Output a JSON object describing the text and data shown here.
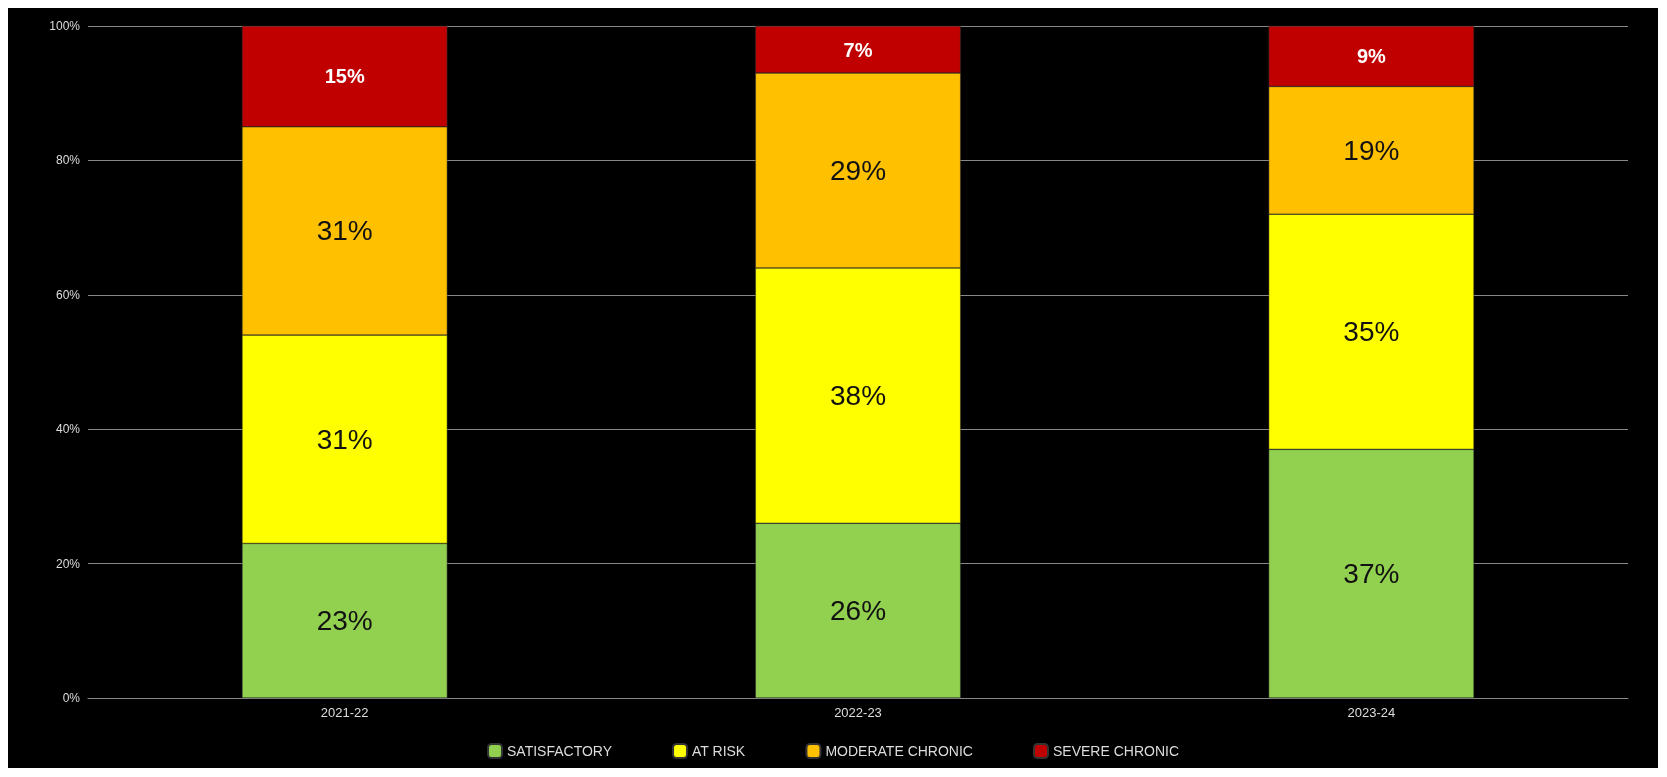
{
  "chart_data": {
    "type": "bar",
    "stacked": true,
    "categories": [
      "2021-22",
      "2022-23",
      "2023-24"
    ],
    "series": [
      {
        "name": "SATISFACTORY",
        "color": "#92d050",
        "values": [
          23,
          26,
          37
        ],
        "value_labels": [
          "23%",
          "26%",
          "37%"
        ]
      },
      {
        "name": "AT RISK",
        "color": "#ffff00",
        "values": [
          31,
          38,
          35
        ],
        "value_labels": [
          "31%",
          "38%",
          "35%"
        ]
      },
      {
        "name": "MODERATE CHRONIC",
        "color": "#ffc000",
        "values": [
          31,
          29,
          19
        ],
        "value_labels": [
          "31%",
          "29%",
          "19%"
        ]
      },
      {
        "name": "SEVERE CHRONIC",
        "color": "#c00000",
        "values": [
          15,
          7,
          9
        ],
        "value_labels": [
          "15%",
          "7%",
          "9%"
        ]
      }
    ],
    "ylim": [
      0,
      100
    ],
    "yticks": [
      {
        "value": 0,
        "label": "0%"
      },
      {
        "value": 20,
        "label": "20%"
      },
      {
        "value": 40,
        "label": "40%"
      },
      {
        "value": 60,
        "label": "60%"
      },
      {
        "value": 80,
        "label": "80%"
      },
      {
        "value": 100,
        "label": "100%"
      }
    ],
    "grid": "y",
    "legend": "bottom"
  }
}
